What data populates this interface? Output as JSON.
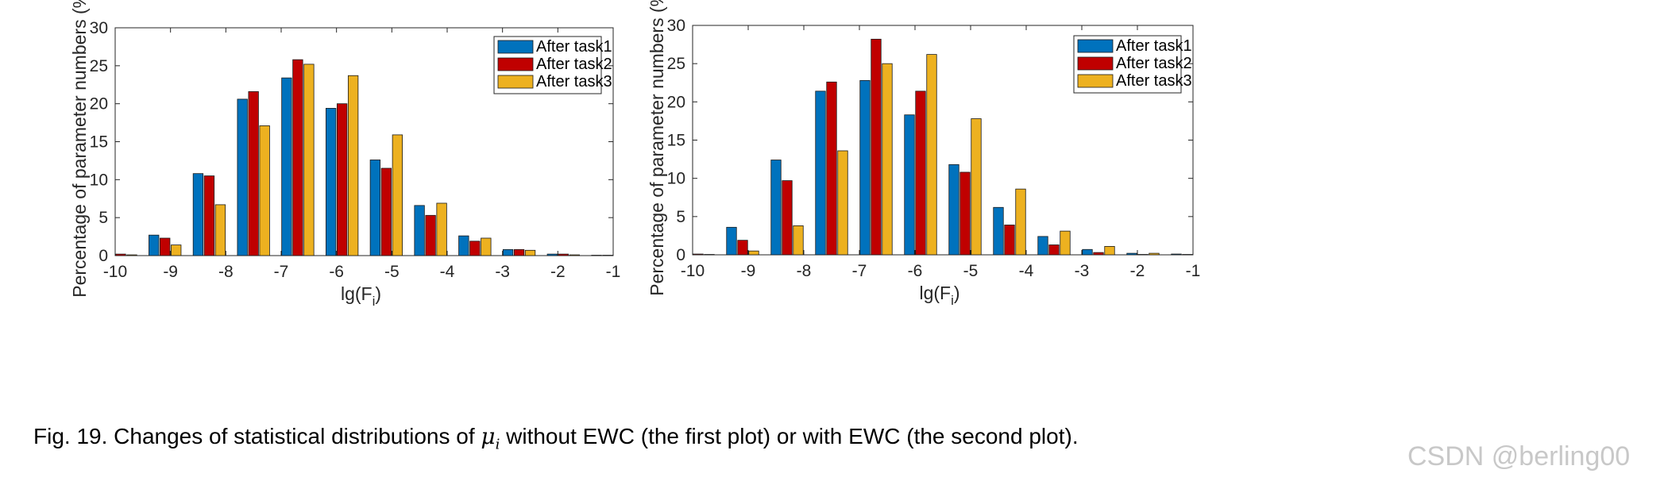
{
  "caption": {
    "prefix": "Fig. 19. Changes of statistical distributions of ",
    "symbol": "μ",
    "subscript": "i",
    "suffix": " without EWC (the first plot) or with EWC (the second plot)."
  },
  "watermark": "CSDN @berling00",
  "colors": {
    "After task1": "#0072BD",
    "After task2": "#C00000",
    "After task3": "#EDB120"
  },
  "chart_data": [
    {
      "type": "bar",
      "title": "",
      "xlabel": "lg(F_i)",
      "ylabel": "Percentage of parameter numbers (%)",
      "xlim": [
        -10,
        -1
      ],
      "ylim": [
        0,
        30
      ],
      "xticks": [
        -10,
        -9,
        -8,
        -7,
        -6,
        -5,
        -4,
        -3,
        -2,
        -1
      ],
      "yticks": [
        0,
        5,
        10,
        15,
        20,
        25,
        30
      ],
      "legend_position": "top-right",
      "categories": [
        -9.8,
        -9.0,
        -8.2,
        -7.4,
        -6.6,
        -5.8,
        -5.0,
        -4.2,
        -3.4,
        -2.6,
        -1.8,
        -1.0
      ],
      "series": [
        {
          "name": "After task1",
          "values": [
            0.3,
            2.7,
            10.8,
            20.6,
            23.4,
            19.4,
            12.6,
            6.6,
            2.6,
            0.8,
            0.2,
            0.05
          ]
        },
        {
          "name": "After task2",
          "values": [
            0.2,
            2.3,
            10.5,
            21.6,
            25.8,
            20.0,
            11.5,
            5.3,
            1.9,
            0.8,
            0.2,
            0.05
          ]
        },
        {
          "name": "After task3",
          "values": [
            0.1,
            1.4,
            6.7,
            17.1,
            25.2,
            23.7,
            15.9,
            6.9,
            2.3,
            0.7,
            0.1,
            0.03
          ]
        }
      ]
    },
    {
      "type": "bar",
      "title": "",
      "xlabel": "lg(F_i)",
      "ylabel": "Percentage of parameter numbers (%)",
      "xlim": [
        -10,
        -1
      ],
      "ylim": [
        0,
        30
      ],
      "xticks": [
        -10,
        -9,
        -8,
        -7,
        -6,
        -5,
        -4,
        -3,
        -2,
        -1
      ],
      "yticks": [
        0,
        5,
        10,
        15,
        20,
        25,
        30
      ],
      "legend_position": "top-right",
      "categories": [
        -9.8,
        -9.0,
        -8.2,
        -7.4,
        -6.6,
        -5.8,
        -5.0,
        -4.2,
        -3.4,
        -2.6,
        -1.8,
        -1.0
      ],
      "series": [
        {
          "name": "After task1",
          "values": [
            0.4,
            3.6,
            12.4,
            21.4,
            22.8,
            18.3,
            11.8,
            6.2,
            2.4,
            0.7,
            0.2,
            0.1
          ]
        },
        {
          "name": "After task2",
          "values": [
            0.1,
            1.9,
            9.7,
            22.6,
            28.2,
            21.4,
            10.8,
            3.9,
            1.3,
            0.3,
            0.05,
            0.05
          ]
        },
        {
          "name": "After task3",
          "values": [
            0.05,
            0.5,
            3.8,
            13.6,
            25.0,
            26.2,
            17.8,
            8.6,
            3.1,
            1.1,
            0.2,
            0.05
          ]
        }
      ]
    }
  ]
}
